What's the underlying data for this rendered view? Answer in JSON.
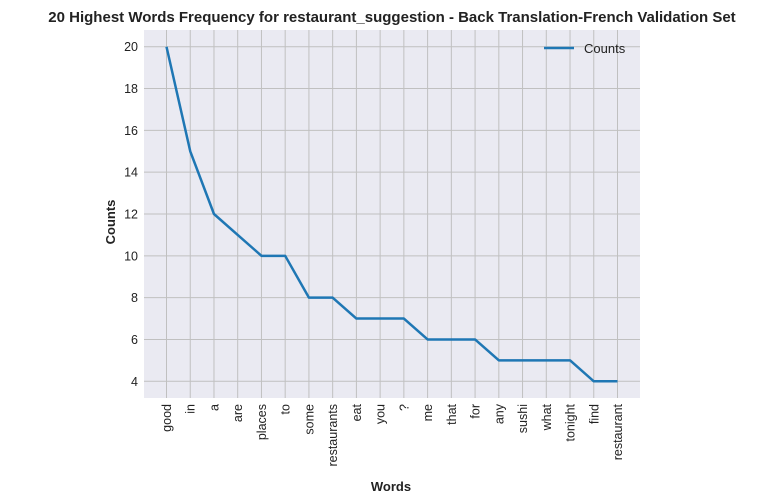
{
  "chart_data": {
    "type": "line",
    "title": "20 Highest Words Frequency for restaurant_suggestion - Back Translation-French Validation Set",
    "xlabel": "Words",
    "ylabel": "Counts",
    "categories": [
      "good",
      "in",
      "a",
      "are",
      "places",
      "to",
      "some",
      "restaurants",
      "eat",
      "you",
      "?",
      "me",
      "that",
      "for",
      "any",
      "sushi",
      "what",
      "tonight",
      "find",
      "restaurant"
    ],
    "series": [
      {
        "name": "Counts",
        "values": [
          20,
          15,
          12,
          11,
          10,
          10,
          8,
          8,
          7,
          7,
          7,
          6,
          6,
          6,
          5,
          5,
          5,
          5,
          4,
          4
        ]
      }
    ],
    "ylim": [
      3.2,
      20.8
    ],
    "yticks": [
      4,
      6,
      8,
      10,
      12,
      14,
      16,
      18,
      20
    ],
    "grid": true,
    "legend_position": "top-right",
    "colors": {
      "line": "#1f77b4",
      "background": "#eaeaf2",
      "grid": "#c0c0c0"
    }
  }
}
